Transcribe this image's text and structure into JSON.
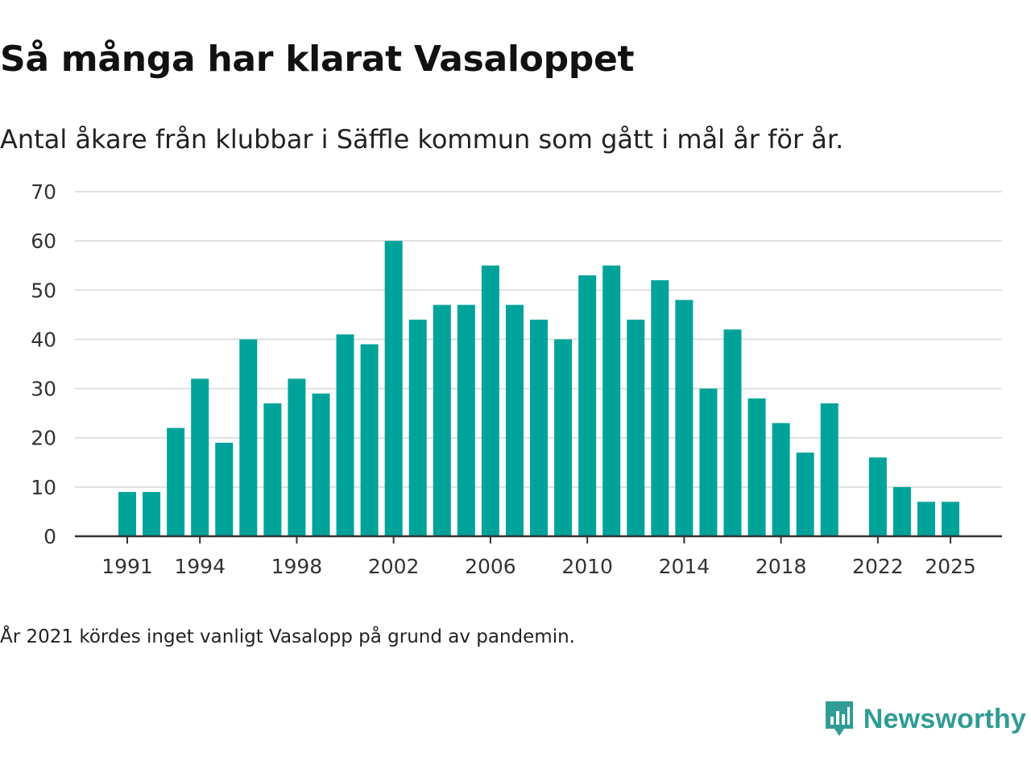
{
  "title": "Så många har klarat Vasaloppet",
  "subtitle": "Antal åkare från klubbar i Säffle kommun som gått i mål år för år.",
  "note": "År 2021 kördes inget vanligt Vasalopp på grund av pandemin.",
  "brand": {
    "name": "Newsworthy",
    "logo_icon": "newsworthy-logo-icon"
  },
  "colors": {
    "bar": "#00a39a",
    "grid": "#e0e0e0",
    "axis": "#333333",
    "brand": "#2f9c95"
  },
  "chart_data": {
    "type": "bar",
    "title": "Så många har klarat Vasaloppet",
    "subtitle": "Antal åkare från klubbar i Säffle kommun som gått i mål år för år.",
    "xlabel": "",
    "ylabel": "",
    "categories": [
      1991,
      1992,
      1993,
      1994,
      1995,
      1996,
      1997,
      1998,
      1999,
      2000,
      2001,
      2002,
      2003,
      2004,
      2005,
      2006,
      2007,
      2008,
      2009,
      2010,
      2011,
      2012,
      2013,
      2014,
      2015,
      2016,
      2017,
      2018,
      2019,
      2020,
      2021,
      2022,
      2023,
      2024,
      2025
    ],
    "values": [
      9,
      9,
      22,
      32,
      19,
      40,
      27,
      32,
      29,
      41,
      39,
      60,
      44,
      47,
      47,
      55,
      47,
      44,
      40,
      53,
      55,
      44,
      52,
      48,
      30,
      42,
      28,
      23,
      17,
      27,
      null,
      16,
      10,
      7,
      7
    ],
    "ylim": [
      0,
      70
    ],
    "yticks": [
      0,
      10,
      20,
      30,
      40,
      50,
      60,
      70
    ],
    "xticks": [
      "1991",
      "1994",
      "1998",
      "2002",
      "2006",
      "2010",
      "2014",
      "2018",
      "2022",
      "2025"
    ],
    "grid": true,
    "legend": "none"
  }
}
